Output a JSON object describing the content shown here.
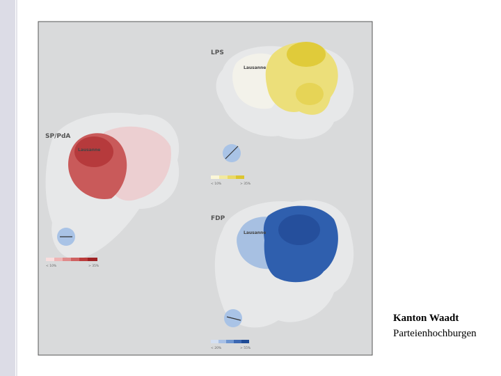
{
  "slide": {
    "title": "Kanton Waadt",
    "subtitle": "Parteienhochburgen"
  },
  "maps": [
    {
      "party": "LPS",
      "city": "Lausanne",
      "legend_low": "< 10%",
      "legend_high": "> 35%"
    },
    {
      "party": "SP/PdA",
      "city": "Lausanne",
      "legend_low": "< 10%",
      "legend_high": "> 35%"
    },
    {
      "party": "FDP",
      "city": "Lausanne",
      "legend_low": "< 20%",
      "legend_high": "> 55%"
    }
  ]
}
